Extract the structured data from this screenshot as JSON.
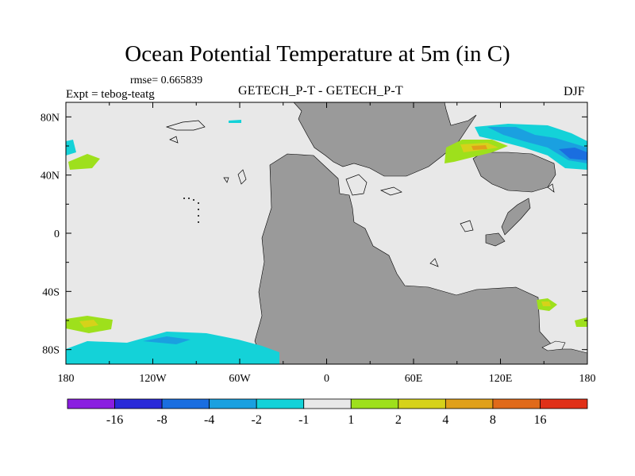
{
  "header": {
    "title": "Ocean Potential Temperature at 5m (in C)",
    "rmse_label": "rmse= 0.665839",
    "expt_label": "Expt = tebog-teatg",
    "center_label": "GETECH_P-T - GETECH_P-T",
    "season": "DJF"
  },
  "chart_data": {
    "type": "heatmap",
    "title": "Ocean Potential Temperature at 5m (in C)",
    "xlabel": "",
    "ylabel": "",
    "x_ticks": [
      "180",
      "120W",
      "60W",
      "0",
      "60E",
      "120E",
      "180"
    ],
    "x_tick_values": [
      -180,
      -120,
      -60,
      0,
      60,
      120,
      180
    ],
    "y_ticks": [
      "80N",
      "40N",
      "0",
      "40S",
      "80S"
    ],
    "y_tick_values": [
      80,
      40,
      0,
      -40,
      -80
    ],
    "xlim": [
      -180,
      180
    ],
    "ylim": [
      -90,
      90
    ],
    "colorbar": {
      "labels": [
        "-16",
        "-8",
        "-4",
        "-2",
        "-1",
        "1",
        "2",
        "4",
        "8",
        "16"
      ],
      "colors": [
        "#8a1ee0",
        "#2a2ad8",
        "#1a6ee0",
        "#1aa0e0",
        "#14d2d8",
        "#e8e8e8",
        "#9ee01c",
        "#d6d21a",
        "#e0a01a",
        "#e06a1a",
        "#e03018"
      ]
    },
    "land_color": "#9a9a9a",
    "ocean_color": "#e8e8e8"
  }
}
